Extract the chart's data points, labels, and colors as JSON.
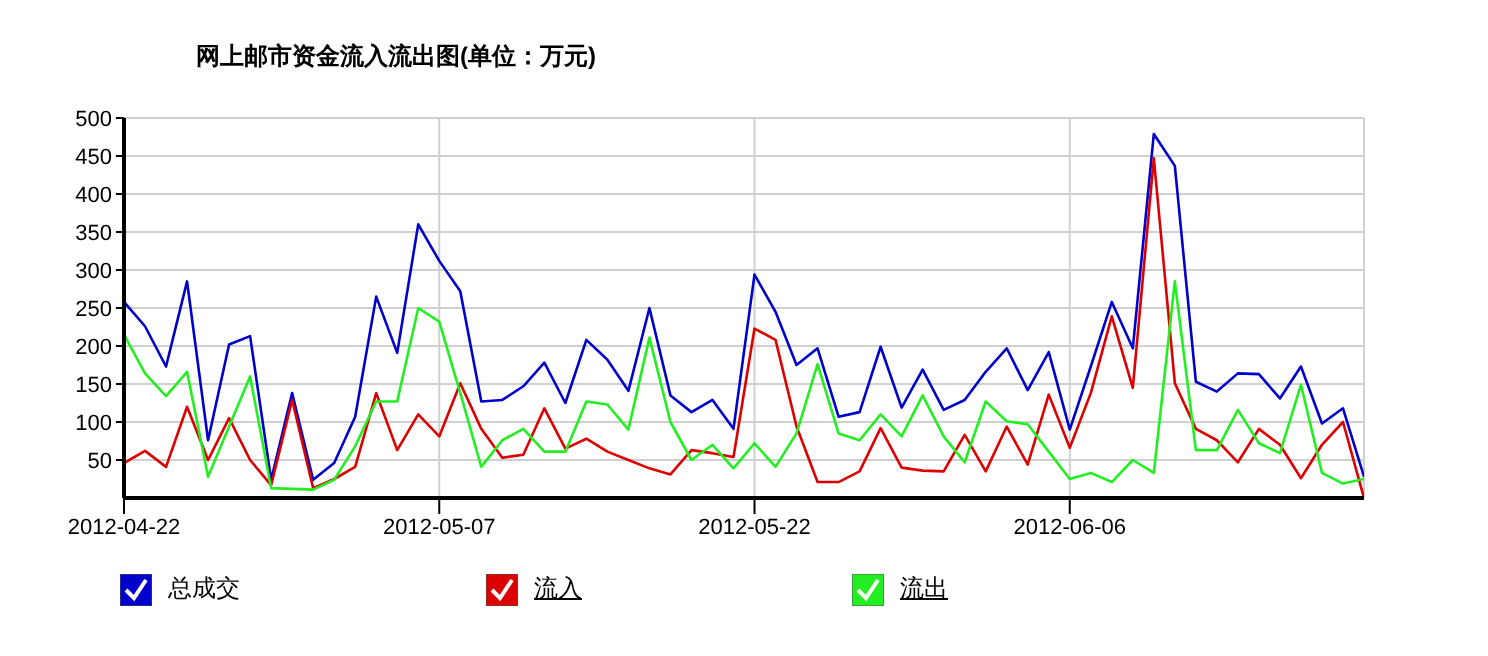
{
  "chart_data": {
    "type": "line",
    "title": "网上邮市资金流入流出图(单位：万元)",
    "x": [
      "2012-04-22",
      "2012-04-23",
      "2012-04-24",
      "2012-04-25",
      "2012-04-26",
      "2012-04-27",
      "2012-04-28",
      "2012-04-29",
      "2012-04-30",
      "2012-05-01",
      "2012-05-02",
      "2012-05-03",
      "2012-05-04",
      "2012-05-05",
      "2012-05-06",
      "2012-05-07",
      "2012-05-08",
      "2012-05-09",
      "2012-05-10",
      "2012-05-11",
      "2012-05-12",
      "2012-05-13",
      "2012-05-14",
      "2012-05-15",
      "2012-05-16",
      "2012-05-17",
      "2012-05-18",
      "2012-05-19",
      "2012-05-20",
      "2012-05-21",
      "2012-05-22",
      "2012-05-23",
      "2012-05-24",
      "2012-05-25",
      "2012-05-26",
      "2012-05-27",
      "2012-05-28",
      "2012-05-29",
      "2012-05-30",
      "2012-05-31",
      "2012-06-01",
      "2012-06-02",
      "2012-06-03",
      "2012-06-04",
      "2012-06-05",
      "2012-06-06",
      "2012-06-07",
      "2012-06-08",
      "2012-06-09",
      "2012-06-10",
      "2012-06-11",
      "2012-06-12",
      "2012-06-13",
      "2012-06-14",
      "2012-06-15",
      "2012-06-16",
      "2012-06-17",
      "2012-06-18",
      "2012-06-19",
      "2012-06-20"
    ],
    "series": [
      {
        "name": "总成交",
        "color": "#0000cc",
        "values": [
          258,
          226,
          173,
          285,
          76,
          202,
          213,
          24,
          138,
          24,
          46,
          107,
          265,
          191,
          360,
          312,
          272,
          127,
          129,
          147,
          178,
          125,
          208,
          182,
          141,
          250,
          135,
          113,
          129,
          91,
          294,
          245,
          175,
          197,
          107,
          113,
          199,
          119,
          169,
          116,
          129,
          166,
          197,
          142,
          192,
          90,
          173,
          258,
          197,
          479,
          437,
          153,
          140,
          164,
          163,
          131,
          173,
          98,
          118,
          28
        ]
      },
      {
        "name": "流入",
        "color": "#dd0000",
        "values": [
          46,
          62,
          41,
          120,
          50,
          105,
          50,
          17,
          129,
          13,
          25,
          41,
          138,
          63,
          110,
          81,
          151,
          91,
          53,
          57,
          118,
          65,
          78,
          61,
          50,
          39,
          31,
          63,
          59,
          54,
          223,
          208,
          94,
          21,
          21,
          35,
          92,
          40,
          36,
          35,
          83,
          35,
          94,
          44,
          136,
          66,
          138,
          239,
          145,
          447,
          151,
          91,
          76,
          47,
          91,
          70,
          26,
          70,
          100,
          0
        ]
      },
      {
        "name": "流出",
        "color": "#22ee22",
        "values": [
          215,
          164,
          134,
          166,
          28,
          94,
          160,
          13,
          12,
          11,
          24,
          68,
          127,
          127,
          250,
          232,
          138,
          41,
          76,
          91,
          61,
          61,
          127,
          123,
          90,
          211,
          100,
          50,
          70,
          39,
          72,
          41,
          85,
          176,
          85,
          76,
          110,
          81,
          135,
          81,
          47,
          127,
          101,
          97,
          61,
          25,
          33,
          21,
          50,
          33,
          285,
          63,
          63,
          116,
          72,
          59,
          149,
          33,
          19,
          25
        ]
      }
    ],
    "xlim": [
      "2012-04-22",
      "2012-06-20"
    ],
    "xticks": [
      "2012-04-22",
      "2012-05-07",
      "2012-05-22",
      "2012-06-06"
    ],
    "ylim": [
      0,
      500
    ],
    "yticks": [
      50,
      100,
      150,
      200,
      250,
      300,
      350,
      400,
      450,
      500
    ],
    "grid": true,
    "legend": "bottom",
    "marker": "none",
    "line_style": "solid"
  }
}
